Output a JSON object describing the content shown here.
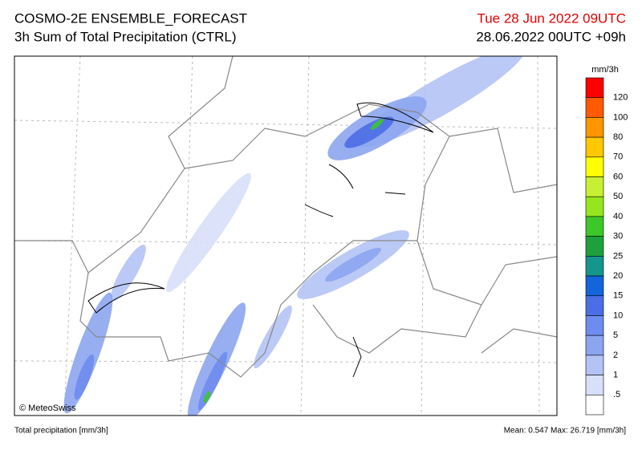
{
  "header": {
    "title": "COSMO-2E ENSEMBLE_FORECAST",
    "subtitle": "3h Sum of Total Precipitation (CTRL)",
    "valid_time": "Tue 28 Jun 2022 09UTC",
    "run_time": "28.06.2022 00UTC +09h"
  },
  "map": {
    "credit": "© MeteoSwiss"
  },
  "legend": {
    "unit": "mm/3h",
    "labels": [
      "120",
      "100",
      "80",
      "70",
      "60",
      "50",
      "40",
      "30",
      "25",
      "20",
      "15",
      "10",
      "5",
      "2",
      "1",
      ".5"
    ],
    "colors": [
      "#ff0000",
      "#ff5a00",
      "#ff9600",
      "#ffc800",
      "#ffff00",
      "#c8f032",
      "#96e61e",
      "#3cc828",
      "#1ea03c",
      "#14968c",
      "#1464dc",
      "#4b6ee6",
      "#6e8cf0",
      "#8ca5f0",
      "#b4c3f5",
      "#d7dffa",
      "#ffffff"
    ]
  },
  "footer": {
    "variable": "Total precipitation [mm/3h]",
    "stats": "Mean:  0.547 Max: 26.719 [mm/3h]"
  }
}
